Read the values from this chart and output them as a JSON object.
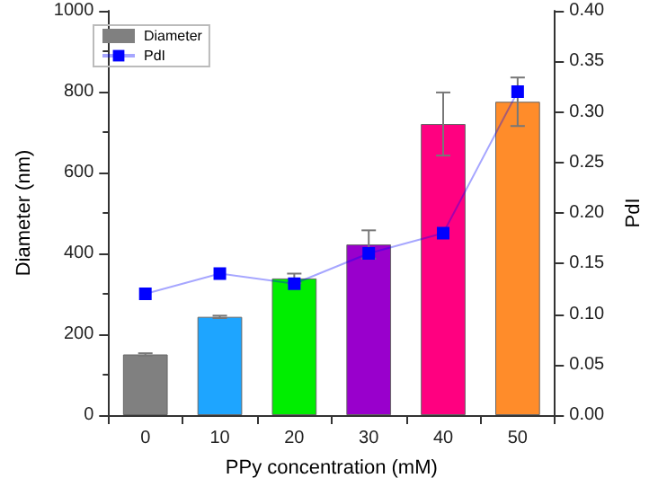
{
  "chart_data": {
    "type": "bar",
    "xlabel": "PPy concentration (mM)",
    "ylabel": "Diameter (nm)",
    "y2label": "PdI",
    "categories": [
      "0",
      "10",
      "20",
      "30",
      "40",
      "50"
    ],
    "series": [
      {
        "name": "Diameter",
        "color": "#808080",
        "colors": [
          "#808080",
          "#1ea5ff",
          "#00ee00",
          "#9900cc",
          "#ff0080",
          "#ff8c2a"
        ],
        "values": [
          150,
          243,
          338,
          422,
          720,
          775
        ],
        "errors": [
          3,
          3,
          12,
          35,
          78,
          60
        ]
      },
      {
        "name": "PdI",
        "type": "line",
        "axis": "y2",
        "color": "#0000ff",
        "marker": "square",
        "values": [
          0.12,
          0.14,
          0.13,
          0.16,
          0.18,
          0.32
        ]
      }
    ],
    "ylim": [
      0,
      1000
    ],
    "yticks": [
      0,
      200,
      400,
      600,
      800,
      1000
    ],
    "y2lim": [
      0,
      0.4
    ],
    "y2ticks": [
      {
        "value": 0,
        "label": "0.00"
      },
      0.05,
      {
        "value": 0.1,
        "label": "0.10"
      },
      0.15,
      {
        "value": 0.2,
        "label": "0.20"
      },
      0.25,
      {
        "value": 0.3,
        "label": "0.30"
      },
      0.35,
      {
        "value": 0.4,
        "label": "0.40"
      }
    ],
    "grid": false,
    "legend": "top left"
  }
}
